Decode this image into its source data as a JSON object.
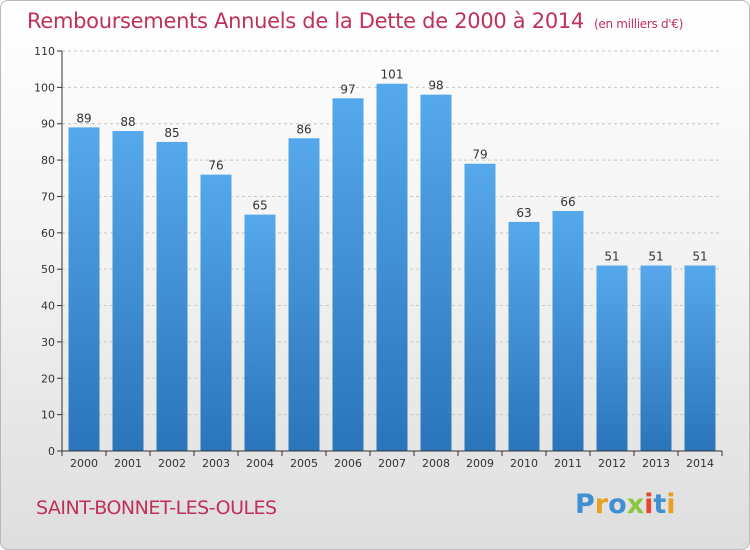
{
  "chart_data": {
    "type": "bar",
    "title": "Remboursements Annuels de la Dette de 2000 à 2014",
    "unit_note": "(en milliers d'€)",
    "categories": [
      "2000",
      "2001",
      "2002",
      "2003",
      "2004",
      "2005",
      "2006",
      "2007",
      "2008",
      "2009",
      "2010",
      "2011",
      "2012",
      "2013",
      "2014"
    ],
    "values": [
      89,
      88,
      85,
      76,
      65,
      86,
      97,
      101,
      98,
      79,
      63,
      66,
      51,
      51,
      51
    ],
    "ylim": [
      0,
      110
    ],
    "yticks": [
      0,
      10,
      20,
      30,
      40,
      50,
      60,
      70,
      80,
      90,
      100,
      110
    ],
    "grid": true,
    "bar_color": "#3a8fd6"
  },
  "footer": {
    "commune": "SAINT-BONNET-LES-OULES",
    "logo_text": "Proxiti",
    "logo_letters": [
      {
        "ch": "P",
        "color": "#3f8fd2"
      },
      {
        "ch": "r",
        "color": "#e8a020"
      },
      {
        "ch": "o",
        "color": "#3f8fd2"
      },
      {
        "ch": "x",
        "color": "#8cc63f"
      },
      {
        "ch": "i",
        "color": "#e8462e"
      },
      {
        "ch": "t",
        "color": "#3f8fd2"
      },
      {
        "ch": "i",
        "color": "#e8a020"
      }
    ]
  },
  "colors": {
    "title": "#c0305a",
    "axis": "#333333",
    "grid": "#c8c8c8"
  }
}
